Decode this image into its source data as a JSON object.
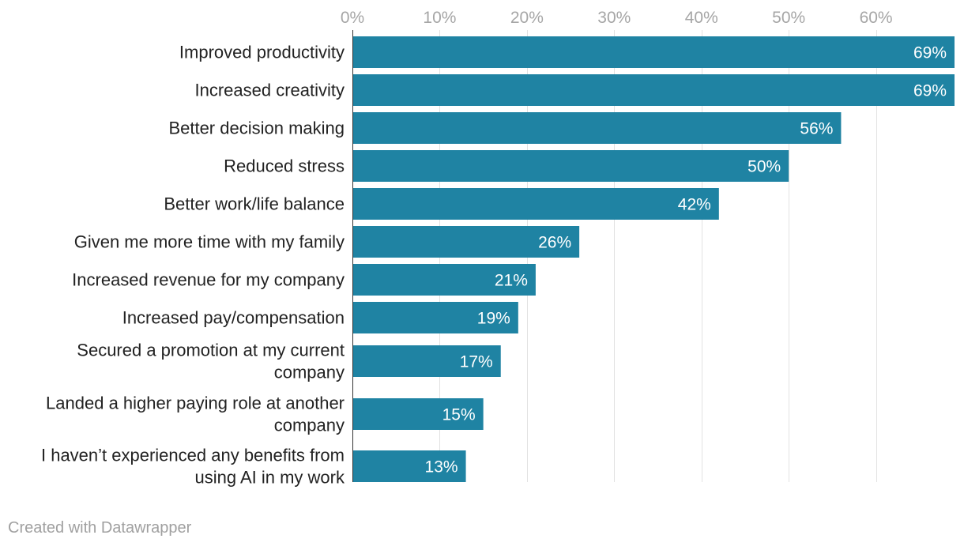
{
  "chart_data": {
    "type": "bar",
    "orientation": "horizontal",
    "categories": [
      "Improved productivity",
      "Increased creativity",
      "Better decision making",
      "Reduced stress",
      "Better work/life balance",
      "Given me more time with my family",
      "Increased revenue for my company",
      "Increased pay/compensation",
      "Secured a promotion at my current company",
      "Landed a higher paying role at another company",
      "I haven’t experienced any benefits from using AI in my work"
    ],
    "category_lines": [
      [
        "Improved productivity"
      ],
      [
        "Increased creativity"
      ],
      [
        "Better decision making"
      ],
      [
        "Reduced stress"
      ],
      [
        "Better work/life balance"
      ],
      [
        "Given me more time with my family"
      ],
      [
        "Increased revenue for my company"
      ],
      [
        "Increased pay/compensation"
      ],
      [
        "Secured a promotion at my current",
        "company"
      ],
      [
        "Landed a higher paying role at another",
        "company"
      ],
      [
        "I haven’t experienced any benefits from",
        "using AI in my work"
      ]
    ],
    "values": [
      69,
      69,
      56,
      50,
      42,
      26,
      21,
      19,
      17,
      15,
      13
    ],
    "value_labels": [
      "69%",
      "69%",
      "56%",
      "50%",
      "42%",
      "26%",
      "21%",
      "19%",
      "17%",
      "15%",
      "13%"
    ],
    "x_ticks": [
      0,
      10,
      20,
      30,
      40,
      50,
      60
    ],
    "x_tick_labels": [
      "0%",
      "10%",
      "20%",
      "30%",
      "40%",
      "50%",
      "60%"
    ],
    "xlim": [
      0,
      69
    ],
    "axis_position": "top",
    "grid": true,
    "title": "",
    "xlabel": "",
    "ylabel": "",
    "bar_color": "#1f83a3",
    "value_label_color": "#ffffff",
    "category_label_color": "#222222",
    "tick_label_color": "#a6a6a6",
    "gridline_color": "#e2e2e2"
  },
  "footer": {
    "credit": "Created with Datawrapper"
  }
}
